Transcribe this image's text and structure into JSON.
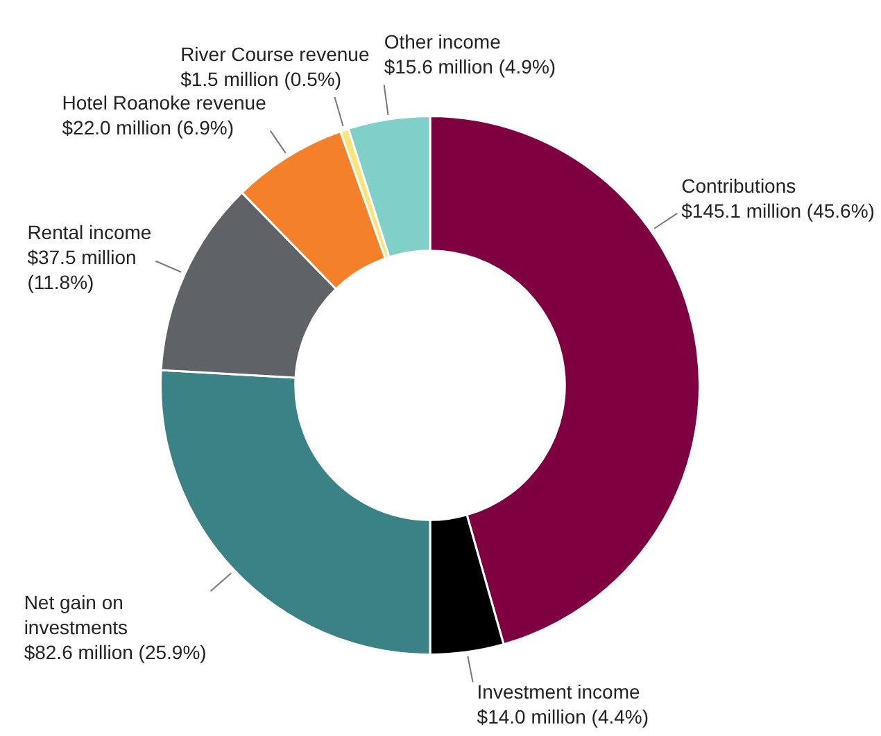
{
  "chart_data": {
    "type": "donut",
    "categories": [
      "Contributions",
      "Investment income",
      "Net gain on investments",
      "Rental income",
      "Hotel Roanoke revenue",
      "River Course revenue",
      "Other income"
    ],
    "values": [
      45.6,
      4.4,
      25.9,
      11.8,
      6.9,
      0.5,
      4.9
    ],
    "colors": [
      "#7f0040",
      "#000000",
      "#3b8286",
      "#5f6368",
      "#f4812a",
      "#fde47a",
      "#80cfc8"
    ],
    "value_labels": [
      "$145.1 million (45.6%)",
      "$14.0 million (4.4%)",
      "$82.6 million (25.9%)",
      "$37.5 million (11.8%)",
      "$22.0 million (6.9%)",
      "$1.5 million (0.5%)",
      "$15.6 million (4.9%)"
    ],
    "legend": false
  }
}
